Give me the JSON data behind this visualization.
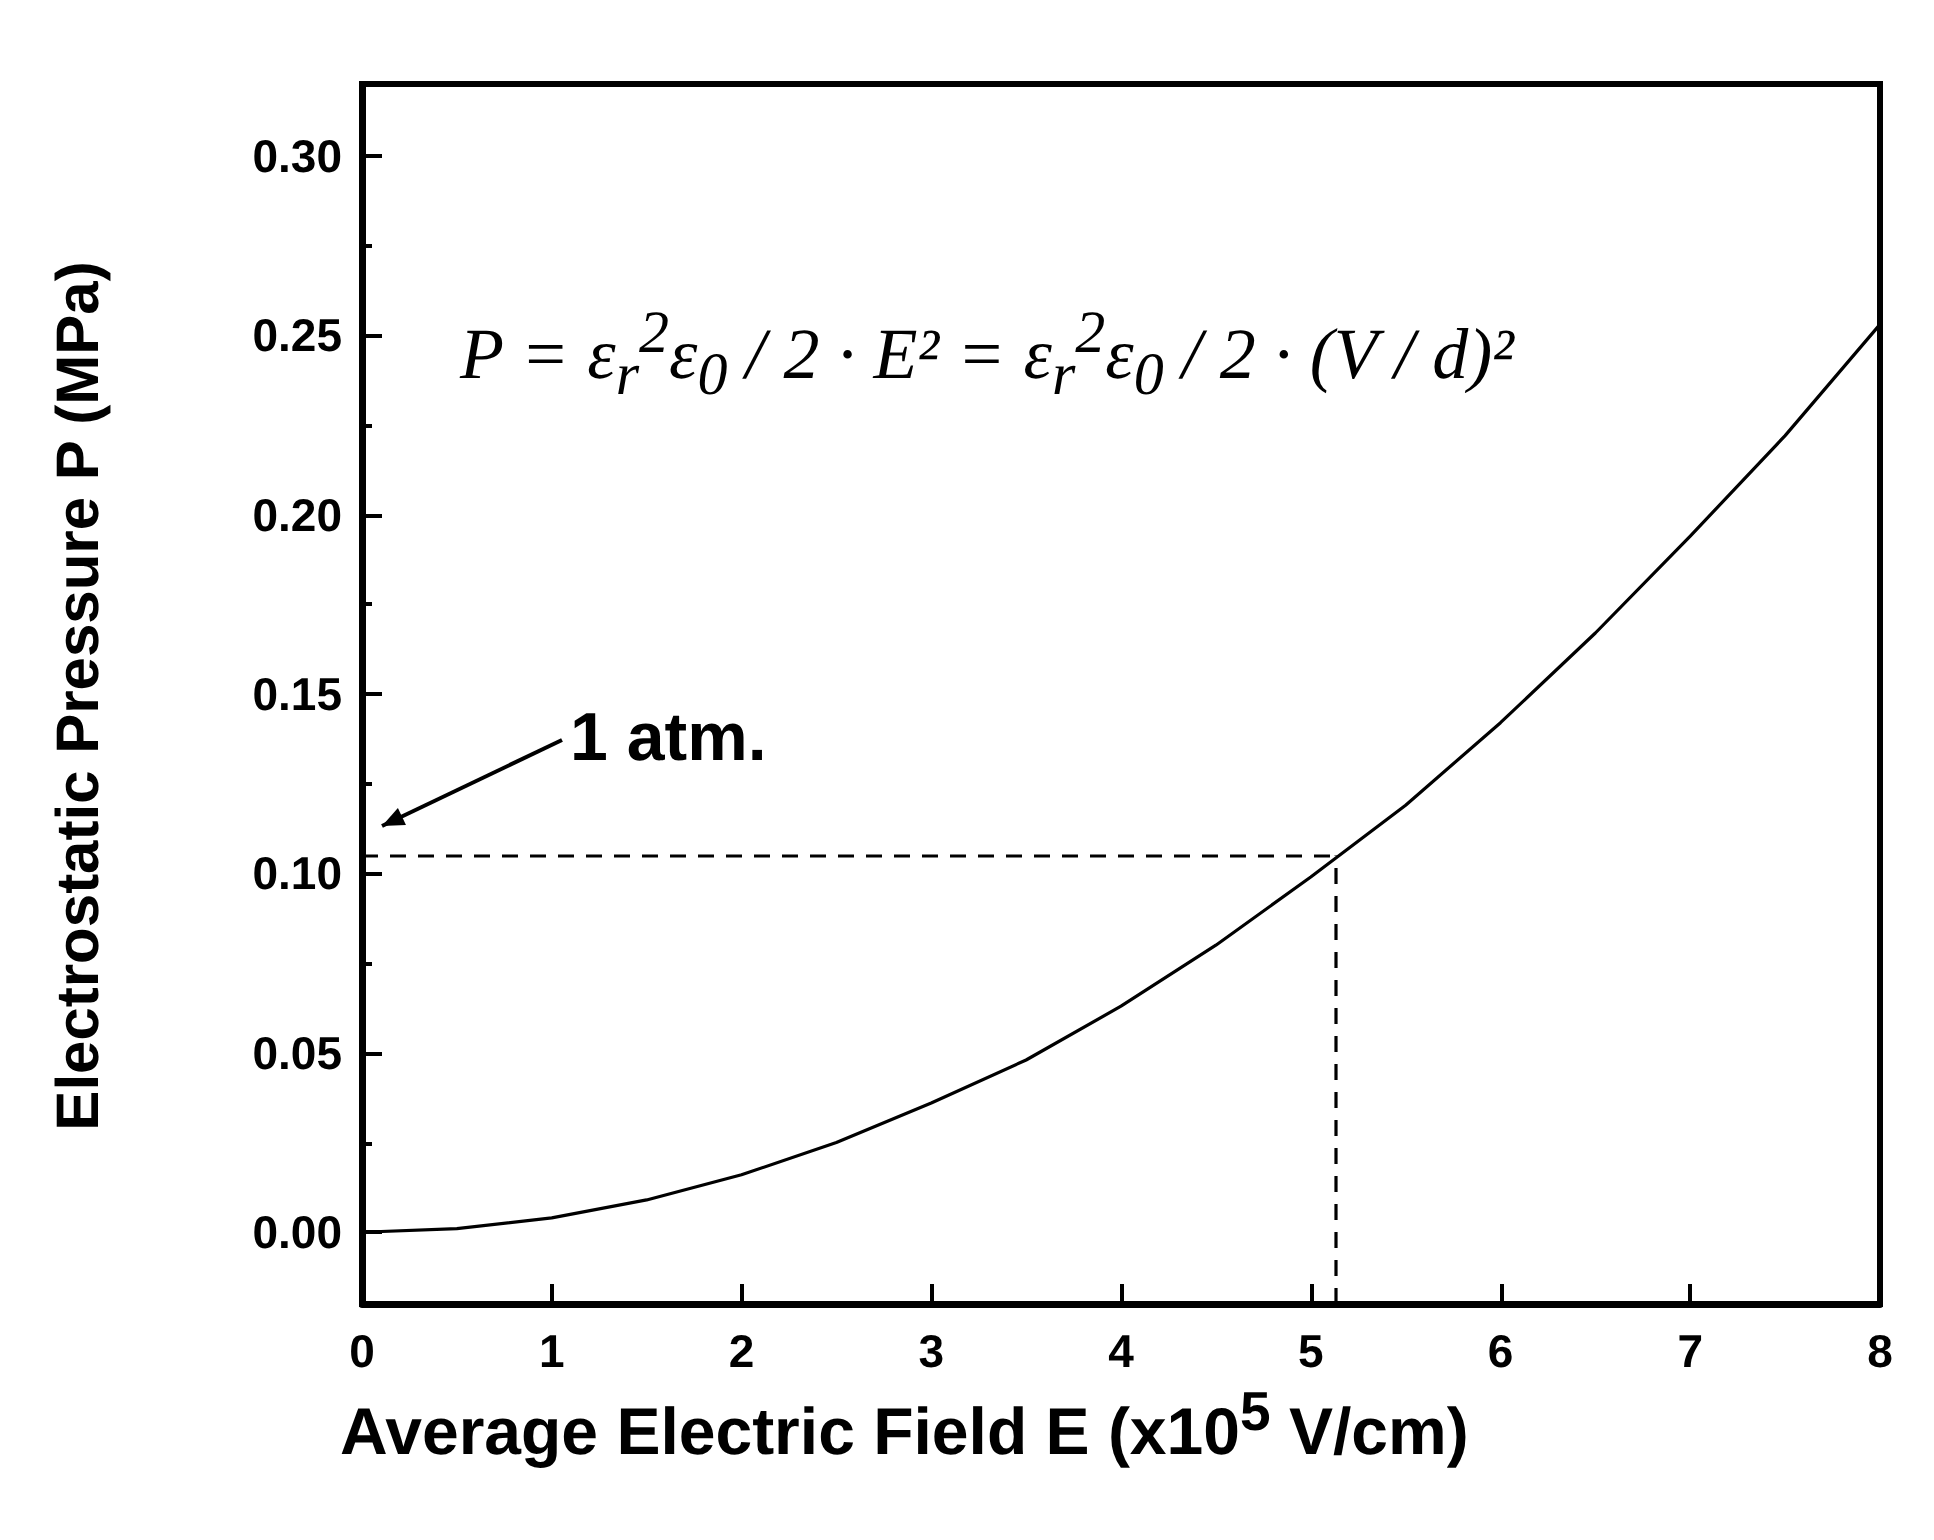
{
  "chart_data": {
    "type": "line",
    "xlabel": "Average Electric Field E (x10$^{5}$ V/cm)",
    "ylabel": "Electrostatic Pressure P (MPa)",
    "x": [
      0,
      0.5,
      1,
      1.5,
      2,
      2.5,
      3,
      3.5,
      4,
      4.5,
      5,
      5.5,
      6,
      6.5,
      7,
      7.5,
      8
    ],
    "series": [
      {
        "color": "#000000",
        "values": [
          0,
          0.001,
          0.004,
          0.009,
          0.016,
          0.025,
          0.036,
          0.048,
          0.063,
          0.08,
          0.099,
          0.119,
          0.142,
          0.167,
          0.194,
          0.222,
          0.253
        ]
      }
    ],
    "ref_lines": [
      {
        "axis": "y",
        "value": 0.105,
        "color": "#000000",
        "line_style": "dashed"
      },
      {
        "axis": "x",
        "value": 5.13,
        "color": "#000000",
        "line_style": "dashed"
      }
    ],
    "annotations": [
      "P = ε$_{r}$$^{2}$ε$_{0}$ / 2 · E² = ε$_{r}$$^{2}$ε$_{0}$ / 2 · (V / d)²",
      "1 atm."
    ],
    "xlim": [
      0,
      8
    ],
    "xticks": [
      0,
      1,
      2,
      3,
      4,
      5,
      6,
      7,
      8
    ],
    "ylim": [
      -0.02,
      0.32
    ],
    "yticks": [
      {
        "value": 0,
        "label": "0.00"
      },
      {
        "value": 0.05,
        "label": "0.05"
      },
      {
        "value": 0.1,
        "label": "0.10"
      },
      {
        "value": 0.15,
        "label": "0.15"
      },
      {
        "value": 0.2,
        "label": "0.20"
      },
      {
        "value": 0.25,
        "label": "0.25"
      },
      {
        "value": 0.3,
        "label": "0.30"
      }
    ],
    "grid": false,
    "marker": "none",
    "line_style": "solid"
  }
}
